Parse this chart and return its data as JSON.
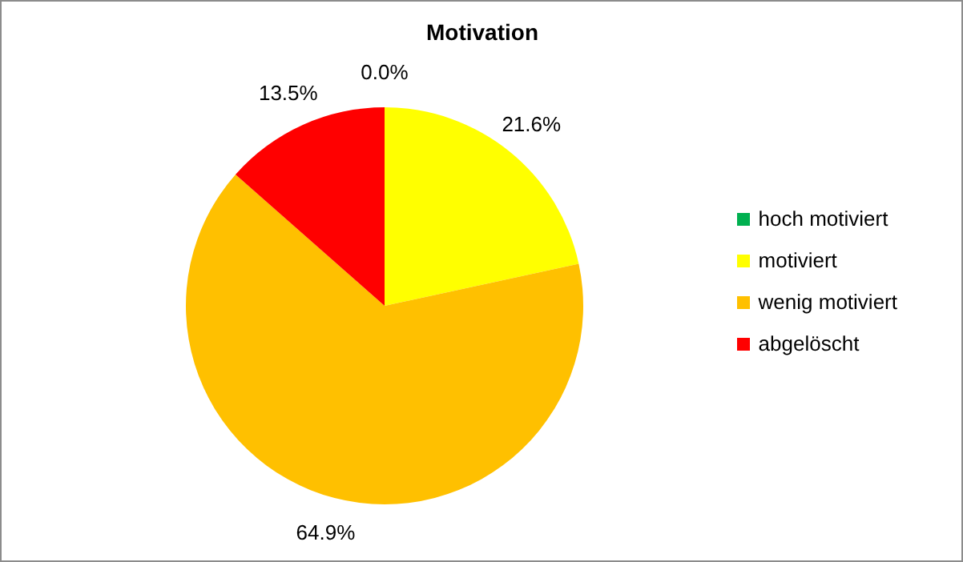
{
  "chart_data": {
    "type": "pie",
    "title": "Motivation",
    "categories": [
      "hoch motiviert",
      "motiviert",
      "wenig motiviert",
      "abgelöscht"
    ],
    "values": [
      0.0,
      21.6,
      64.9,
      13.5
    ],
    "colors": [
      "#00b050",
      "#ffff00",
      "#ffc000",
      "#ff0000"
    ],
    "value_labels": [
      "0.0%",
      "21.6%",
      "64.9%",
      "13.5%"
    ],
    "legend": "right"
  }
}
